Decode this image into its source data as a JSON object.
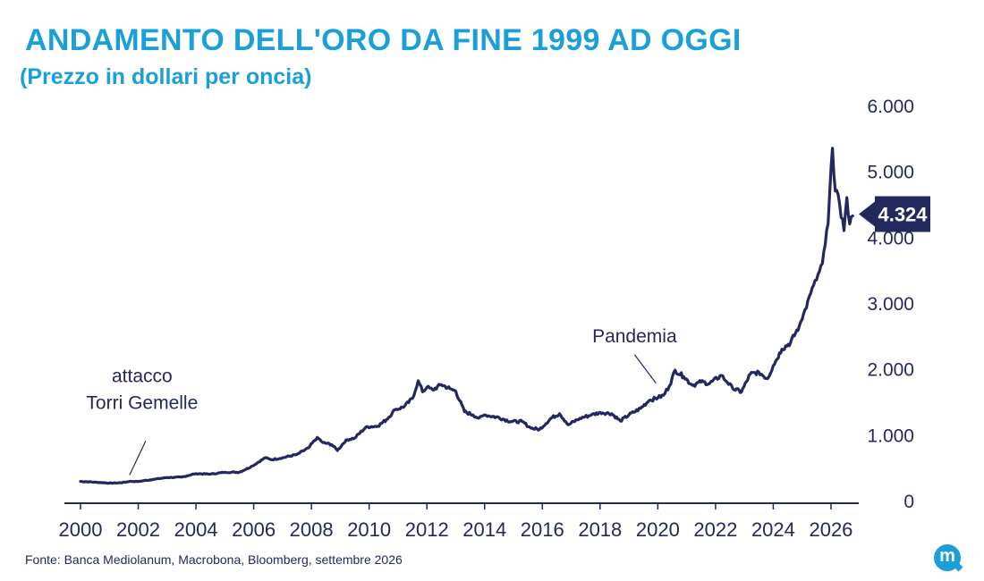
{
  "header": {
    "title": "ANDAMENTO DELL'ORO DA FINE 1999 AD OGGI",
    "subtitle": "(Prezzo in dollari per oncia)"
  },
  "footer": {
    "source": "Fonte: Banca Mediolanum, Macrobona, Bloomberg, settembre 2026",
    "logo_letter": "m"
  },
  "colors": {
    "title": "#1b9fd8",
    "line": "#23285f",
    "text": "#23285f"
  },
  "chart_data": {
    "type": "line",
    "title": "ANDAMENTO DELL'ORO DA FINE 1999 AD OGGI",
    "subtitle": "(Prezzo in dollari per oncia)",
    "xlim": [
      2000,
      2026.9
    ],
    "ylim": [
      0,
      6000
    ],
    "x_ticks": [
      2000,
      2002,
      2004,
      2006,
      2008,
      2010,
      2012,
      2014,
      2016,
      2018,
      2020,
      2022,
      2024,
      2026
    ],
    "x_tick_labels": [
      "2000",
      "2002",
      "2004",
      "2006",
      "2008",
      "2010",
      "2012",
      "2014",
      "2016",
      "2018",
      "2020",
      "2022",
      "2024",
      "2026"
    ],
    "y_ticks": [
      0,
      1000,
      2000,
      3000,
      4000,
      5000,
      6000
    ],
    "y_tick_labels": [
      "0",
      "1.000",
      "2.000",
      "3.000",
      "4.000",
      "5.000",
      "6.000"
    ],
    "y_axis_position": "right",
    "grid": false,
    "legend": "none",
    "last_value": 4324,
    "last_value_label": "4.324",
    "annotations": [
      {
        "text_lines": [
          "attacco",
          "Torri Gemelle"
        ],
        "x": 2001.7,
        "y": 280
      },
      {
        "text_lines": [
          "Pandemia"
        ],
        "x": 2020.0,
        "y": 1700
      }
    ],
    "series": [
      {
        "x": [
          2000.0,
          2000.5,
          2001.0,
          2001.4,
          2001.7,
          2002.0,
          2002.5,
          2003.0,
          2003.5,
          2004.0,
          2004.5,
          2005.0,
          2005.5,
          2005.9,
          2006.4,
          2006.6,
          2007.0,
          2007.5,
          2007.9,
          2008.2,
          2008.4,
          2008.7,
          2008.9,
          2009.2,
          2009.5,
          2009.9,
          2010.3,
          2010.6,
          2010.9,
          2011.2,
          2011.5,
          2011.7,
          2011.85,
          2012.0,
          2012.2,
          2012.5,
          2012.8,
          2013.0,
          2013.3,
          2013.6,
          2013.8,
          2014.0,
          2014.5,
          2014.9,
          2015.3,
          2015.6,
          2015.9,
          2016.3,
          2016.6,
          2016.9,
          2017.3,
          2017.7,
          2018.0,
          2018.4,
          2018.7,
          2019.0,
          2019.4,
          2019.7,
          2020.0,
          2020.2,
          2020.4,
          2020.6,
          2020.9,
          2021.2,
          2021.5,
          2021.8,
          2022.2,
          2022.4,
          2022.6,
          2022.9,
          2023.2,
          2023.5,
          2023.8,
          2024.0,
          2024.3,
          2024.6,
          2024.9,
          2025.1,
          2025.3,
          2025.5,
          2025.7,
          2025.9,
          2026.05,
          2026.15,
          2026.3,
          2026.45,
          2026.55,
          2026.65,
          2026.75
        ],
        "y": [
          290,
          280,
          265,
          270,
          290,
          290,
          320,
          350,
          355,
          410,
          400,
          430,
          430,
          510,
          650,
          620,
          650,
          700,
          800,
          960,
          880,
          850,
          760,
          920,
          950,
          1120,
          1130,
          1230,
          1380,
          1420,
          1550,
          1820,
          1650,
          1720,
          1680,
          1760,
          1700,
          1660,
          1350,
          1300,
          1250,
          1300,
          1260,
          1200,
          1200,
          1100,
          1080,
          1250,
          1320,
          1150,
          1250,
          1300,
          1340,
          1320,
          1210,
          1300,
          1400,
          1520,
          1560,
          1600,
          1740,
          1980,
          1880,
          1750,
          1800,
          1780,
          1900,
          1800,
          1700,
          1650,
          1920,
          1950,
          1850,
          2050,
          2300,
          2400,
          2650,
          2900,
          3150,
          3350,
          3600,
          4200,
          5350,
          4700,
          4500,
          4100,
          4600,
          4200,
          4324
        ]
      }
    ]
  }
}
